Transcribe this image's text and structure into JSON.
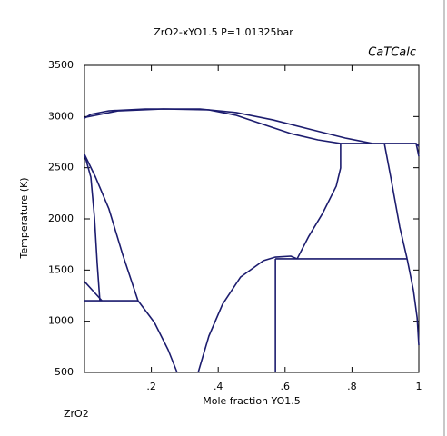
{
  "chart_data": {
    "type": "line",
    "title": "ZrO2-xYO1.5 P=1.01325bar",
    "x_label": "Mole fraction YO1.5",
    "y_label": "Temperature (K)",
    "annotations": [
      {
        "text": "CaTCalc",
        "color": "#8b2a2a"
      },
      {
        "text": "ZrO2"
      }
    ],
    "xlim": [
      0,
      1
    ],
    "ylim": [
      500,
      3500
    ],
    "xticks": [
      {
        "value": 0.2,
        "label": ".2"
      },
      {
        "value": 0.4,
        "label": ".4"
      },
      {
        "value": 0.6,
        "label": ".6"
      },
      {
        "value": 0.8,
        "label": ".8"
      },
      1
    ],
    "yticks": [
      500,
      1000,
      1500,
      2000,
      2500,
      3000,
      3500
    ],
    "series": [
      {
        "color": "#1c1c6e",
        "x": [
          0,
          0.019,
          0.073,
          0.182,
          0.345,
          0.454,
          0.563,
          0.671,
          0.78,
          0.861
        ],
        "values": [
          2985,
          3021,
          3056,
          3074,
          3074,
          3039,
          2968,
          2879,
          2790,
          2737
        ]
      },
      {
        "color": "#1c1c6e",
        "x": [
          0.005,
          0.101,
          0.236,
          0.372,
          0.454,
          0.535,
          0.617,
          0.698,
          0.766
        ],
        "values": [
          2994,
          3056,
          3074,
          3065,
          3012,
          2923,
          2834,
          2772,
          2737
        ]
      },
      {
        "color": "#1c1c6e",
        "x": [
          0.766,
          0.992,
          1
        ],
        "values": [
          2737,
          2737,
          2710
        ]
      },
      {
        "color": "#1c1c6e",
        "x": [
          0.992,
          1
        ],
        "values": [
          2737,
          2612
        ]
      },
      {
        "color": "#1c1c6e",
        "x": [
          0.766,
          0.766,
          0.753,
          0.712,
          0.671,
          0.636
        ],
        "values": [
          2737,
          2497,
          2320,
          2053,
          1831,
          1610
        ]
      },
      {
        "color": "#1c1c6e",
        "x": [
          0.897,
          0.916,
          0.943,
          0.965
        ],
        "values": [
          2737,
          2408,
          1920,
          1610
        ]
      },
      {
        "color": "#1c1c6e",
        "x": [
          0.965,
          0.984,
          0.995,
          1
        ],
        "values": [
          1610,
          1299,
          1033,
          766
        ]
      },
      {
        "color": "#1c1c6e",
        "x": [
          0.571,
          0.965
        ],
        "values": [
          1610,
          1610
        ]
      },
      {
        "color": "#1c1c6e",
        "x": [
          0.571,
          0.571
        ],
        "values": [
          1610,
          500
        ]
      },
      {
        "color": "#1c1c6e",
        "x": [
          0.34,
          0.372,
          0.413,
          0.467,
          0.535,
          0.571,
          0.617,
          0.636
        ],
        "values": [
          500,
          855,
          1166,
          1432,
          1592,
          1627,
          1636,
          1610
        ]
      },
      {
        "color": "#1c1c6e",
        "x": [
          0,
          0.019,
          0.03,
          0.038,
          0.046
        ],
        "values": [
          2630,
          2408,
          2009,
          1565,
          1201
        ]
      },
      {
        "color": "#1c1c6e",
        "x": [
          0,
          0.033,
          0.073,
          0.114,
          0.16
        ],
        "values": [
          2630,
          2408,
          2098,
          1654,
          1201
        ]
      },
      {
        "color": "#1c1c6e",
        "x": [
          0,
          0.052
        ],
        "values": [
          1388,
          1201
        ]
      },
      {
        "color": "#1c1c6e",
        "x": [
          0,
          0.16
        ],
        "values": [
          1201,
          1201
        ]
      },
      {
        "color": "#1c1c6e",
        "x": [
          0.16,
          0.209,
          0.25,
          0.277
        ],
        "values": [
          1201,
          988,
          722,
          500
        ]
      }
    ]
  }
}
